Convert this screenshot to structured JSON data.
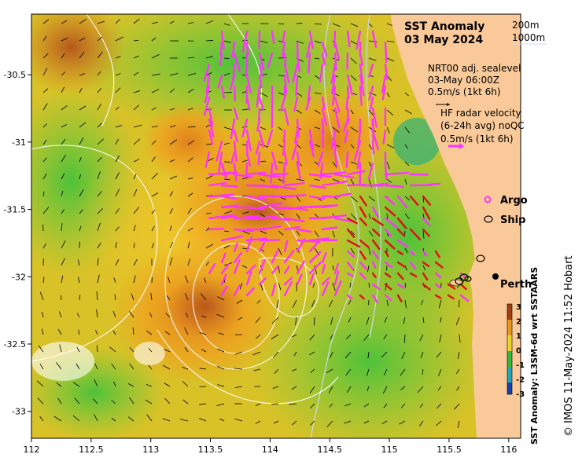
{
  "title": {
    "line1": "SST Anomaly",
    "line2": "03 May 2024"
  },
  "contours": [
    "200m",
    "1000m"
  ],
  "sealevel_info": {
    "line1": "NRT00 adj. sealevel",
    "line2": "03-May 06:00Z",
    "line3": "0.5m/s (1kt 6h)"
  },
  "hf_radar_info": {
    "line1": "HF radar velocity",
    "line2": "(6-24h avg) noQC",
    "line3": "0.5m/s (1kt 6h)"
  },
  "legend": {
    "argo": "Argo",
    "ship": "Ship"
  },
  "city": "Perth",
  "colorbar": {
    "label": "SST Anomaly: L3SM-6d wrt SSTAARS",
    "ticks": [
      "3",
      "2",
      "1",
      "0",
      "-1",
      "-2",
      "-3"
    ]
  },
  "credit": "© IMOS 11-May-2024 11:52 Hobart",
  "axes": {
    "x_ticks": [
      "112",
      "112.5",
      "113",
      "113.5",
      "114",
      "114.5",
      "115",
      "115.5",
      "116"
    ],
    "y_ticks": [
      "-30.5",
      "-31",
      "-31.5",
      "-32",
      "-32.5",
      "-33"
    ],
    "xlim": [
      112,
      116.1
    ],
    "ylim": [
      -33.2,
      -30.05
    ]
  },
  "colors": {
    "land": "#fac999",
    "hf_radar_vectors": "#ff33ff",
    "hf_radar_vectors_alt": "#dd1111",
    "argo_marker": "#ff33ff"
  }
}
